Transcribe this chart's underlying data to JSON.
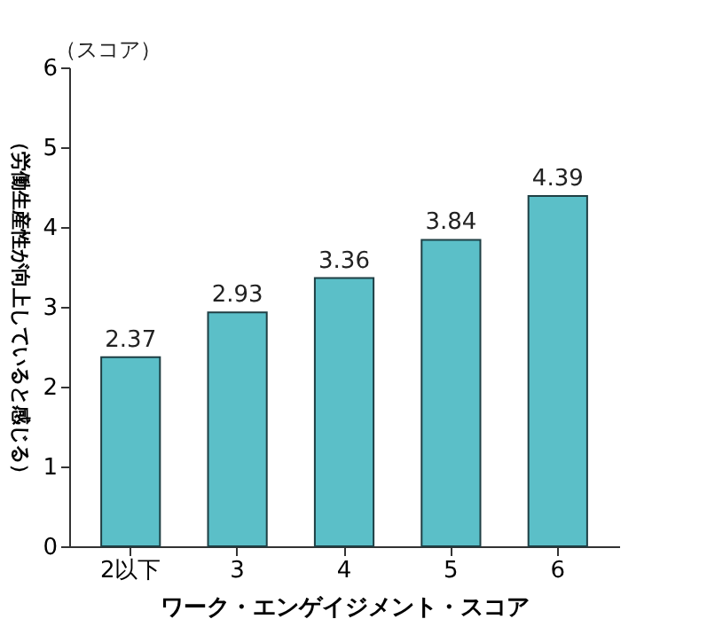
{
  "chart_data": {
    "type": "bar",
    "categories": [
      "2以下",
      "3",
      "4",
      "5",
      "6"
    ],
    "values": [
      2.37,
      2.93,
      3.36,
      3.84,
      4.39
    ],
    "color": "#5bbfc8",
    "ylim": [
      0,
      6
    ],
    "yticks": [
      0,
      1,
      2,
      3,
      4,
      5,
      6
    ],
    "xlabel": "ワーク・エンゲイジメント・スコア",
    "ylabel": "（労働生産性が向上していると感じる）",
    "annotations": [
      "（スコア）"
    ],
    "data_labels": true,
    "grid": false
  }
}
